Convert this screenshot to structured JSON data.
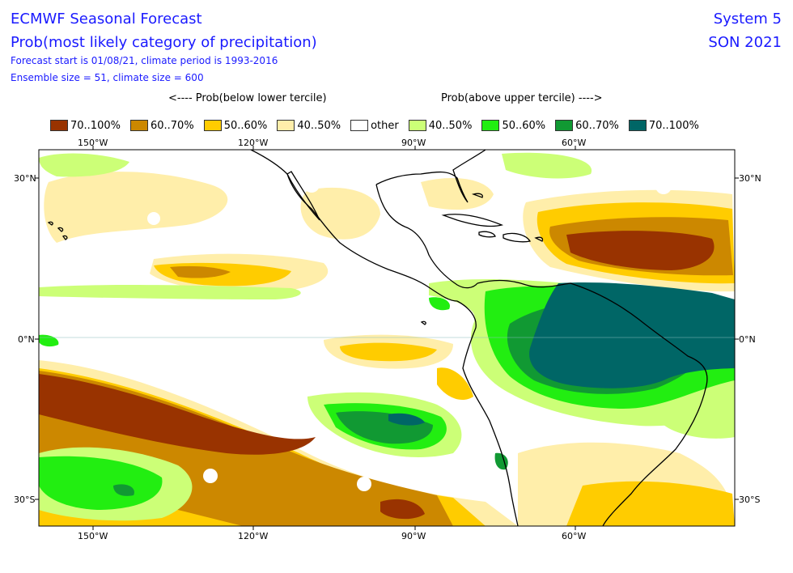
{
  "header": {
    "title_line1": "ECMWF Seasonal Forecast",
    "title_line2": "Prob(most likely category of precipitation)",
    "info_line1": "Forecast start is 01/08/21, climate period is 1993-2016",
    "info_line2": "Ensemble size = 51, climate size = 600",
    "system": "System 5",
    "season": "SON 2021"
  },
  "legend": {
    "group_below": "<---- Prob(below lower tercile)",
    "group_above": "Prob(above upper tercile) ---->",
    "items": [
      {
        "label": "70..100%",
        "color": "#993300"
      },
      {
        "label": "60..70%",
        "color": "#cc8800"
      },
      {
        "label": "50..60%",
        "color": "#ffcc00"
      },
      {
        "label": "40..50%",
        "color": "#ffeeaa"
      },
      {
        "label": "other",
        "color": "#ffffff"
      },
      {
        "label": "40..50%",
        "color": "#ccff77"
      },
      {
        "label": "50..60%",
        "color": "#22ee11"
      },
      {
        "label": "60..70%",
        "color": "#119933"
      },
      {
        "label": "70..100%",
        "color": "#006666"
      }
    ]
  },
  "axes": {
    "lon_labels": [
      "150°W",
      "120°W",
      "90°W",
      "60°W"
    ],
    "lat_labels": [
      "30°N",
      "0°N",
      "30°S"
    ]
  }
}
